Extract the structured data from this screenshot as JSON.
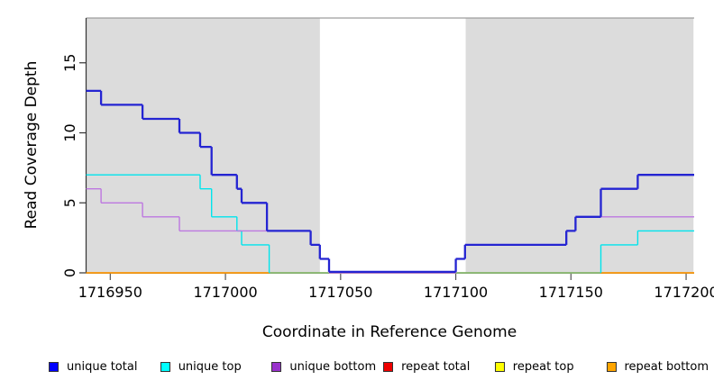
{
  "chart_data": {
    "type": "line",
    "subtype": "step",
    "title": "",
    "xlabel": "Coordinate in Reference Genome",
    "ylabel": "Read Coverage Depth",
    "xlim": [
      1716939.5,
      1717203.5
    ],
    "ylim": [
      0,
      18.2
    ],
    "x_ticks": [
      1716950,
      1717000,
      1717050,
      1717100,
      1717150,
      1717200
    ],
    "y_ticks": [
      0,
      5,
      10,
      15
    ],
    "grid": false,
    "legend_position": "bottom",
    "background_color": "#ffffff",
    "shaded_region_color": "#dcdcdc",
    "shaded_regions": [
      {
        "from": 1716939.5,
        "to": 1717041
      },
      {
        "from": 1717104.3,
        "to": 1717203.2
      }
    ],
    "series": [
      {
        "name": "repeat total",
        "line_color": "#e01010",
        "legend_color": "#ee0000",
        "width": 1.2,
        "steps": [
          [
            1716939.5,
            0
          ],
          [
            1717203.5,
            0
          ]
        ]
      },
      {
        "name": "repeat top",
        "line_color": "#ffee00",
        "legend_color": "#ffff00",
        "width": 1.2,
        "steps": [
          [
            1716939.5,
            0
          ],
          [
            1717203.5,
            0
          ]
        ]
      },
      {
        "name": "repeat bottom",
        "line_color": "#ff9705",
        "legend_color": "#ffa500",
        "width": 1.6,
        "steps": [
          [
            1716939.5,
            0
          ],
          [
            1717203.5,
            0
          ]
        ]
      },
      {
        "name": "unique top",
        "line_color": "#00e4ec",
        "legend_color": "#00ffff",
        "width": 1.4,
        "steps": [
          [
            1716939.5,
            7
          ],
          [
            1716989,
            6
          ],
          [
            1716994,
            4
          ],
          [
            1717005,
            3
          ],
          [
            1717007,
            2
          ],
          [
            1717019,
            0
          ],
          [
            1717163,
            2
          ],
          [
            1717179,
            3
          ],
          [
            1717203.5,
            3
          ]
        ]
      },
      {
        "name": "unique bottom",
        "line_color": "#bd77e0",
        "legend_color": "#9932cc",
        "width": 1.4,
        "steps": [
          [
            1716939.5,
            6
          ],
          [
            1716946,
            5
          ],
          [
            1716964,
            4
          ],
          [
            1716980,
            3
          ],
          [
            1717037,
            2
          ],
          [
            1717041,
            1
          ],
          [
            1717045,
            0
          ],
          [
            1717100,
            1
          ],
          [
            1717104,
            2
          ],
          [
            1717148,
            3
          ],
          [
            1717152,
            4
          ],
          [
            1717203.5,
            4
          ]
        ]
      },
      {
        "name": "unique total",
        "line_color": "#2424d2",
        "legend_color": "#0000ff",
        "width": 2.3,
        "steps": [
          [
            1716939.5,
            13
          ],
          [
            1716946,
            12
          ],
          [
            1716964,
            11
          ],
          [
            1716980,
            10
          ],
          [
            1716989,
            9
          ],
          [
            1716994,
            7
          ],
          [
            1717005,
            6
          ],
          [
            1717007,
            5
          ],
          [
            1717018,
            3
          ],
          [
            1717037,
            2
          ],
          [
            1717041,
            1
          ],
          [
            1717045,
            0
          ],
          [
            1717100,
            1
          ],
          [
            1717104,
            2
          ],
          [
            1717148,
            3
          ],
          [
            1717152,
            4
          ],
          [
            1717163,
            6
          ],
          [
            1717179,
            7
          ],
          [
            1717203.5,
            7
          ]
        ]
      }
    ],
    "legend_order": [
      "unique total",
      "unique top",
      "unique bottom",
      "repeat total",
      "repeat top",
      "repeat bottom"
    ]
  }
}
